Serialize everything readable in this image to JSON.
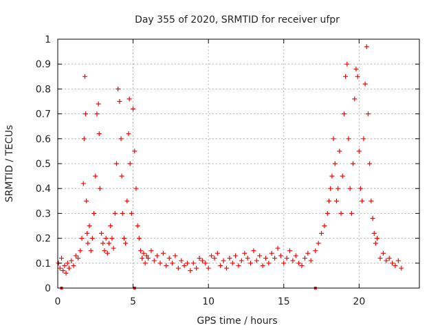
{
  "chart_data": {
    "type": "scatter",
    "title": "Day 355 of 2020, SRMTID for receiver ufpr",
    "xlabel": "GPS time / hours",
    "ylabel": "SRMTID / TECUs",
    "xlim": [
      0,
      24
    ],
    "ylim": [
      0,
      1
    ],
    "xticks": [
      0,
      5,
      10,
      15,
      20
    ],
    "yticks": [
      0,
      0.1,
      0.2,
      0.3,
      0.4,
      0.5,
      0.6,
      0.7,
      0.8,
      0.9,
      1
    ],
    "ytick_labels": [
      "0",
      "0.1",
      "0.2",
      "0.3",
      "0.4",
      "0.5",
      "0.6",
      "0.7",
      "0.8",
      "0.9",
      "1"
    ],
    "grid": true,
    "marker": "+",
    "series": [
      {
        "name": "SRMTID",
        "color": "#ff0000",
        "x": [
          0.05,
          0.15,
          0.25,
          0.35,
          0.45,
          0.55,
          0.65,
          0.75,
          0.9,
          1.05,
          1.2,
          1.35,
          1.5,
          1.6,
          1.7,
          1.75,
          1.8,
          1.85,
          1.9,
          1.95,
          2.0,
          2.1,
          2.2,
          2.3,
          2.4,
          2.5,
          2.6,
          2.7,
          2.75,
          2.8,
          2.9,
          3.0,
          3.1,
          3.2,
          3.3,
          3.4,
          3.5,
          3.6,
          3.7,
          3.8,
          3.9,
          4.0,
          4.1,
          4.2,
          4.25,
          4.3,
          4.4,
          4.5,
          4.6,
          4.7,
          4.75,
          4.8,
          4.9,
          5.0,
          5.1,
          5.2,
          5.3,
          5.4,
          5.5,
          5.6,
          5.7,
          5.8,
          5.9,
          6.0,
          6.2,
          6.4,
          6.6,
          6.8,
          7.0,
          7.2,
          7.4,
          7.6,
          7.8,
          8.0,
          8.2,
          8.4,
          8.6,
          8.8,
          9.0,
          9.2,
          9.4,
          9.6,
          9.8,
          10.0,
          10.2,
          10.4,
          10.6,
          10.8,
          11.0,
          11.2,
          11.4,
          11.6,
          11.8,
          12.0,
          12.2,
          12.4,
          12.6,
          12.8,
          13.0,
          13.2,
          13.4,
          13.6,
          13.8,
          14.0,
          14.2,
          14.4,
          14.6,
          14.8,
          15.0,
          15.2,
          15.4,
          15.6,
          15.8,
          16.0,
          16.2,
          16.4,
          16.6,
          16.8,
          17.1,
          17.3,
          17.5,
          17.7,
          17.9,
          18.0,
          18.1,
          18.2,
          18.3,
          18.4,
          18.5,
          18.6,
          18.7,
          18.8,
          18.9,
          19.0,
          19.1,
          19.2,
          19.3,
          19.4,
          19.5,
          19.6,
          19.7,
          19.8,
          19.9,
          20.0,
          20.1,
          20.2,
          20.3,
          20.4,
          20.5,
          20.6,
          20.7,
          20.8,
          20.9,
          21.0,
          21.1,
          21.2,
          21.4,
          21.6,
          21.8,
          22.0,
          22.2,
          22.4,
          22.6,
          22.8
        ],
        "y": [
          0.1,
          0.08,
          0.12,
          0.07,
          0.09,
          0.06,
          0.1,
          0.08,
          0.11,
          0.09,
          0.13,
          0.12,
          0.15,
          0.2,
          0.42,
          0.6,
          0.85,
          0.7,
          0.35,
          0.22,
          0.18,
          0.25,
          0.15,
          0.2,
          0.3,
          0.45,
          0.7,
          0.74,
          0.62,
          0.4,
          0.22,
          0.18,
          0.15,
          0.2,
          0.14,
          0.18,
          0.25,
          0.2,
          0.16,
          0.3,
          0.5,
          0.8,
          0.75,
          0.6,
          0.45,
          0.3,
          0.2,
          0.18,
          0.35,
          0.62,
          0.76,
          0.5,
          0.3,
          0.72,
          0.55,
          0.4,
          0.25,
          0.2,
          0.15,
          0.12,
          0.14,
          0.1,
          0.13,
          0.12,
          0.15,
          0.11,
          0.13,
          0.1,
          0.14,
          0.09,
          0.12,
          0.1,
          0.13,
          0.08,
          0.11,
          0.09,
          0.1,
          0.07,
          0.1,
          0.08,
          0.12,
          0.11,
          0.1,
          0.08,
          0.13,
          0.12,
          0.14,
          0.09,
          0.11,
          0.08,
          0.12,
          0.1,
          0.13,
          0.09,
          0.11,
          0.14,
          0.12,
          0.1,
          0.15,
          0.11,
          0.13,
          0.09,
          0.12,
          0.1,
          0.14,
          0.12,
          0.16,
          0.13,
          0.1,
          0.12,
          0.15,
          0.11,
          0.13,
          0.1,
          0.09,
          0.12,
          0.14,
          0.11,
          0.15,
          0.18,
          0.22,
          0.25,
          0.3,
          0.35,
          0.4,
          0.45,
          0.6,
          0.5,
          0.35,
          0.4,
          0.55,
          0.3,
          0.45,
          0.7,
          0.85,
          0.9,
          0.6,
          0.4,
          0.3,
          0.5,
          0.76,
          0.88,
          0.85,
          0.55,
          0.4,
          0.35,
          0.6,
          0.82,
          0.97,
          0.7,
          0.5,
          0.35,
          0.28,
          0.22,
          0.18,
          0.2,
          0.12,
          0.14,
          0.11,
          0.12,
          0.1,
          0.09,
          0.11,
          0.08
        ]
      }
    ],
    "zero_markers": [
      0.25,
      5.1,
      17.1
    ]
  }
}
